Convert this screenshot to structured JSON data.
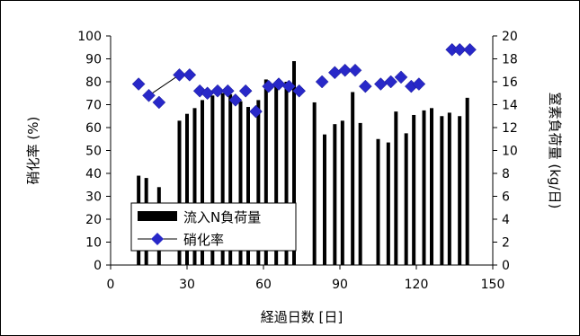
{
  "chart_data": {
    "type": "bar+scatter",
    "xlabel": "経過日数 [日]",
    "ylabel_left": "硝化率 (%)",
    "ylabel_right": "窒素負荷量 (kg/日)",
    "xlim": [
      0,
      150
    ],
    "ylim_left": [
      0,
      100
    ],
    "ylim_right": [
      0,
      20
    ],
    "x_ticks": [
      "0",
      "30",
      "60",
      "90",
      "120",
      "150"
    ],
    "y_left_ticks": [
      "0",
      "10",
      "20",
      "30",
      "40",
      "50",
      "60",
      "70",
      "80",
      "90",
      "100"
    ],
    "y_right_ticks": [
      "0",
      "2",
      "4",
      "6",
      "8",
      "10",
      "12",
      "14",
      "16",
      "18",
      "20"
    ],
    "grid": false,
    "legend_position": "bottom-left",
    "series": [
      {
        "name": "流入N負荷量",
        "type": "bar",
        "axis": "right",
        "color": "#000000",
        "x": [
          11,
          14,
          19,
          27,
          30,
          33,
          36,
          40,
          44,
          47,
          51,
          54,
          58,
          61,
          65,
          69,
          72,
          80,
          84,
          88,
          91,
          95,
          98,
          105,
          109,
          112,
          116,
          119,
          123,
          126,
          130,
          133,
          137,
          140
        ],
        "y": [
          7.8,
          7.6,
          6.8,
          12.6,
          13.2,
          13.7,
          14.4,
          14.8,
          15.0,
          14.9,
          14.3,
          13.8,
          14.4,
          16.2,
          15.8,
          16.0,
          17.8,
          14.2,
          11.4,
          12.3,
          12.6,
          15.1,
          12.4,
          11.0,
          10.7,
          13.4,
          11.5,
          13.1,
          13.5,
          13.7,
          13.0,
          13.3,
          13.0,
          14.6
        ]
      },
      {
        "name": "硝化率",
        "type": "line-marker",
        "axis": "left",
        "color": "#2828c8",
        "x": [
          11,
          15,
          19,
          27,
          31,
          35,
          38,
          42,
          46,
          49,
          53,
          57,
          62,
          66,
          70,
          74,
          83,
          88,
          92,
          96,
          100,
          106,
          110,
          114,
          118,
          121,
          134,
          137,
          141
        ],
        "y": [
          79,
          74,
          71,
          83,
          83,
          76,
          75,
          76,
          76,
          72,
          76,
          67,
          78,
          79,
          78,
          76,
          80,
          84,
          85,
          85,
          78,
          79,
          80,
          82,
          78,
          79,
          94,
          94,
          94
        ],
        "connected_segments": [
          [
            1,
            3
          ],
          [
            3,
            4
          ],
          [
            13,
            15
          ]
        ]
      }
    ]
  }
}
